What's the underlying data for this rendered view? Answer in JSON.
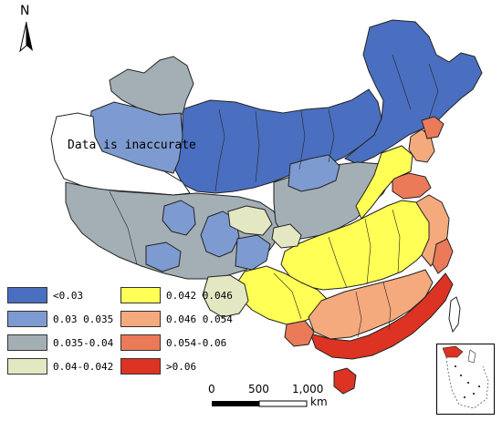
{
  "north": {
    "label": "N",
    "icon": "north-arrow-icon"
  },
  "annotation": {
    "no_data_label": "Data is inaccurate"
  },
  "legend": {
    "items": [
      {
        "label": "<0.03",
        "color": "#4a6fc0"
      },
      {
        "label": "0.03 0.035",
        "color": "#7d9bd0"
      },
      {
        "label": "0.035-0.04",
        "color": "#a3afb5"
      },
      {
        "label": "0.04-0.042",
        "color": "#e3e8c2"
      },
      {
        "label": "0.042 0.046",
        "color": "#ffff55"
      },
      {
        "label": "0.046 0.054",
        "color": "#f4aa7c"
      },
      {
        "label": "0.054-0.06",
        "color": "#eb7a58"
      },
      {
        "label": ">0.06",
        "color": "#dd3322"
      }
    ]
  },
  "scale_bar": {
    "ticks": [
      "0",
      "500",
      "1,000"
    ],
    "unit": "km"
  },
  "colors": {
    "no_data": "#ffffff",
    "border": "#222222",
    "water": "#ffffff"
  }
}
